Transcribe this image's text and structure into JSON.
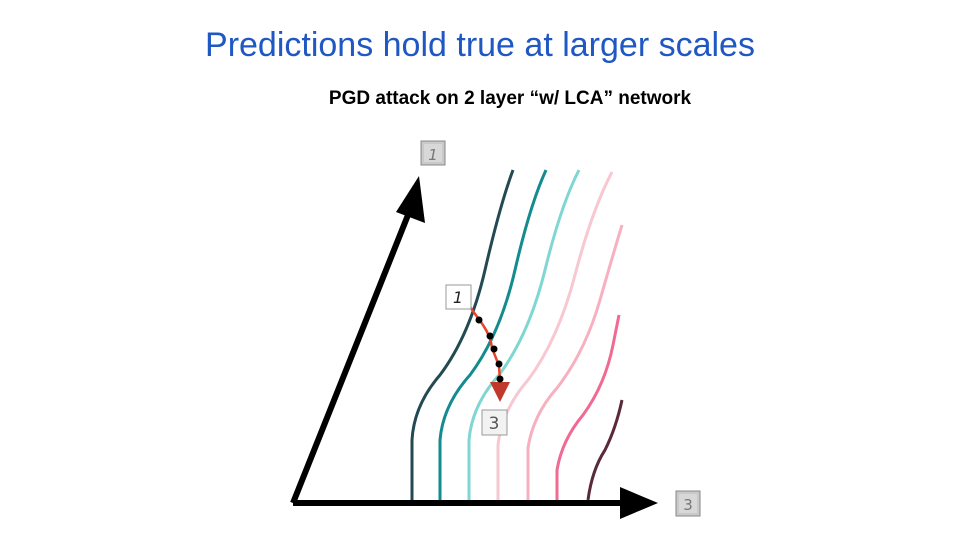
{
  "slide": {
    "title": "Predictions hold true at larger scales",
    "subtitle": "PGD attack on 2 layer “w/ LCA” network"
  },
  "diagram": {
    "axis_y_digit": "1",
    "axis_x_digit": "3",
    "start_digit": "1",
    "end_digit": "3",
    "contour_colors": [
      "#234a52",
      "#138b8f",
      "#7fd6d2",
      "#f7c8d0",
      "#f7b0c0",
      "#f06a93",
      "#5a2a38"
    ],
    "trajectory_color": "#e8452a"
  }
}
